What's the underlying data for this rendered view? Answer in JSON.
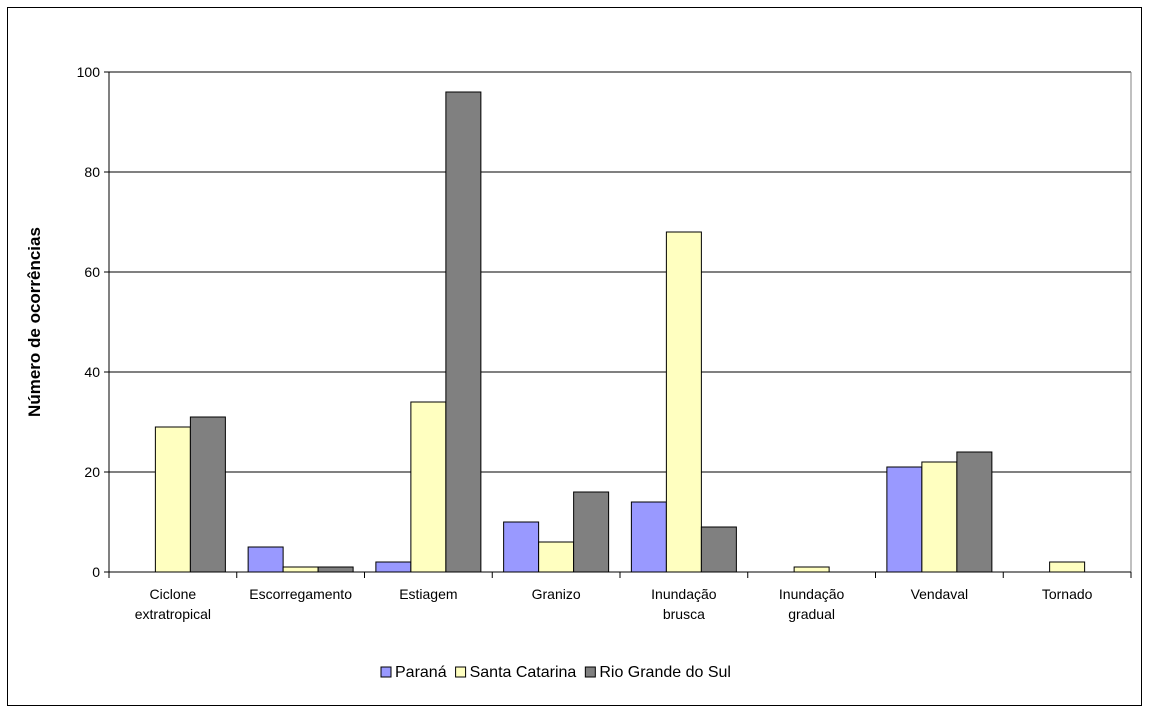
{
  "chart_data": {
    "type": "bar",
    "title": "",
    "xlabel": "",
    "ylabel": "Número de ocorrências",
    "ylim": [
      0,
      100
    ],
    "yticks": [
      0,
      20,
      40,
      60,
      80,
      100
    ],
    "grid": true,
    "legend_position": "bottom",
    "categories": [
      [
        "Ciclone",
        "extratropical"
      ],
      [
        "Escorregamento"
      ],
      [
        "Estiagem"
      ],
      [
        "Granizo"
      ],
      [
        "Inundação",
        "brusca"
      ],
      [
        "Inundação",
        "gradual"
      ],
      [
        "Vendaval"
      ],
      [
        "Tornado"
      ]
    ],
    "series": [
      {
        "name": "Paraná",
        "color": "#9999ff",
        "values": [
          0,
          5,
          2,
          10,
          14,
          0,
          21,
          0
        ]
      },
      {
        "name": "Santa Catarina",
        "color": "#ffffc0",
        "values": [
          29,
          1,
          34,
          6,
          68,
          1,
          22,
          2
        ]
      },
      {
        "name": "Rio Grande do Sul",
        "color": "#808080",
        "values": [
          31,
          1,
          96,
          16,
          9,
          0,
          24,
          0
        ]
      }
    ]
  }
}
